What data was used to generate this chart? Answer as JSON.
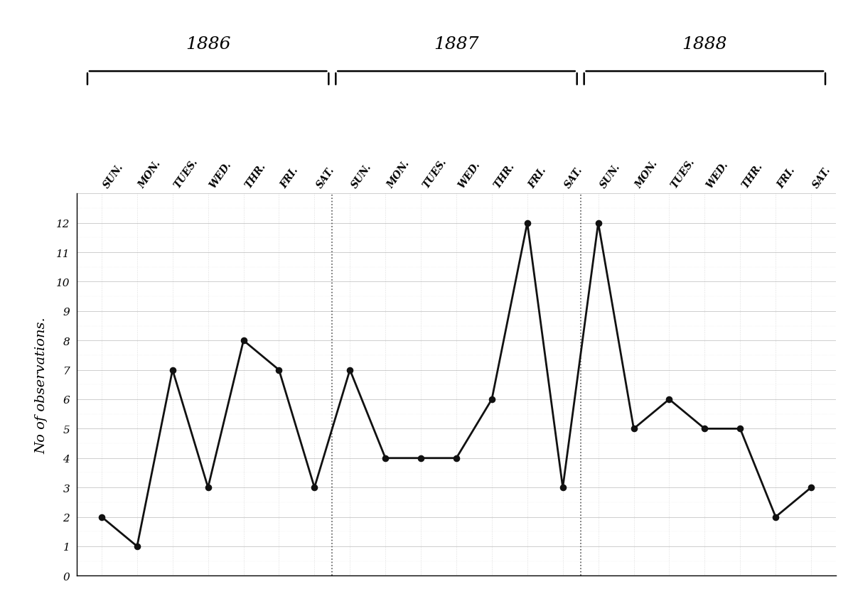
{
  "ylabel": "No of observations.",
  "years": [
    "1886",
    "1887",
    "1888"
  ],
  "days": [
    "SUN.",
    "MON.",
    "TUES.",
    "WED.",
    "THR.",
    "FRI.",
    "SAT."
  ],
  "data": {
    "1886": [
      2,
      1,
      7,
      3,
      8,
      7,
      3
    ],
    "1887": [
      7,
      4,
      4,
      4,
      6,
      12,
      3
    ],
    "1888": [
      12,
      5,
      6,
      5,
      5,
      2,
      3
    ]
  },
  "ylim": [
    0,
    13
  ],
  "yticks": [
    0,
    1,
    2,
    3,
    4,
    5,
    6,
    7,
    8,
    9,
    10,
    11,
    12
  ],
  "bg_color": "#ffffff",
  "line_color": "#111111",
  "grid_major_color": "#aaaaaa",
  "grid_minor_color": "#cccccc",
  "dot_color": "#111111",
  "separator_color": "#555555",
  "year_label_fontsize": 18,
  "day_label_fontsize": 10,
  "ylabel_fontsize": 14,
  "ytick_fontsize": 11
}
